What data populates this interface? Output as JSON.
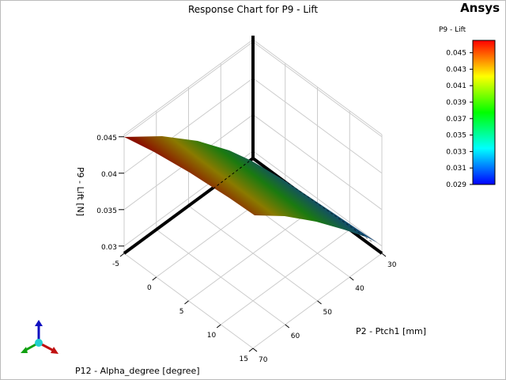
{
  "brand": "Ansys",
  "chart_data": {
    "type": "surface",
    "title": "Response Chart for P9 - Lift",
    "zlabel": "P9 - Lift  [N]",
    "xlabel": "P12 - Alpha_degree  [degree]",
    "ylabel": "P2 - Ptch1  [mm]",
    "x_ticks": [
      "-5",
      "0",
      "5",
      "10",
      "15"
    ],
    "y_ticks": [
      "30",
      "40",
      "50",
      "60",
      "70"
    ],
    "z_ticks": [
      "0.03",
      "0.035",
      "0.04",
      "0.045"
    ],
    "xlim": [
      -5,
      15
    ],
    "ylim": [
      30,
      70
    ],
    "zlim": [
      0.029,
      0.0453
    ],
    "colorbar": {
      "title": "P9 - Lift",
      "ticks": [
        "0.045",
        "0.043",
        "0.041",
        "0.039",
        "0.037",
        "0.035",
        "0.033",
        "0.031",
        "0.029"
      ],
      "range": [
        0.029,
        0.0465
      ],
      "colors": [
        "#0000ff",
        "#00ffff",
        "#00ff00",
        "#ffff00",
        "#ff0000"
      ]
    }
  }
}
